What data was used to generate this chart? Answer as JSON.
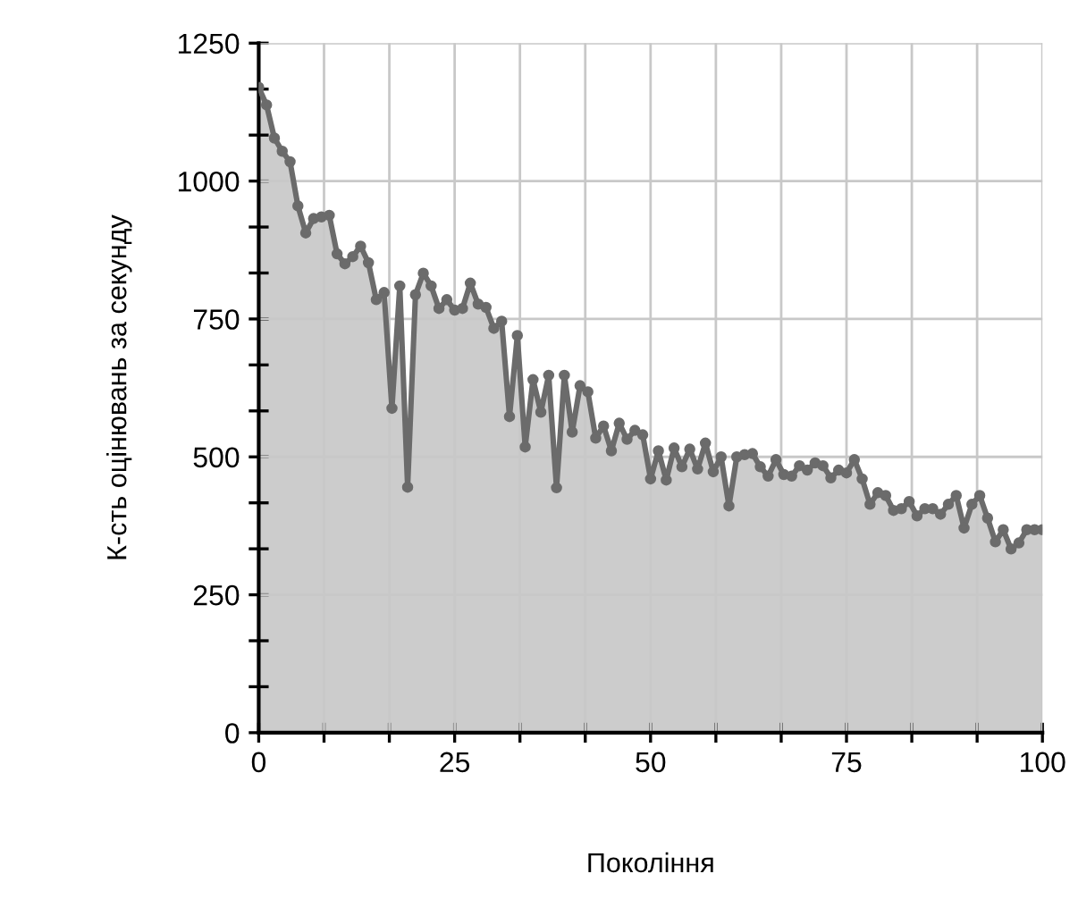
{
  "chart_data": {
    "type": "area",
    "xlabel": "Покоління",
    "ylabel": "К-сть оцінювань за секунду",
    "x": [
      0,
      1,
      2,
      3,
      4,
      5,
      6,
      7,
      8,
      9,
      10,
      11,
      12,
      13,
      14,
      15,
      16,
      17,
      18,
      19,
      20,
      21,
      22,
      23,
      24,
      25,
      26,
      27,
      28,
      29,
      30,
      31,
      32,
      33,
      34,
      35,
      36,
      37,
      38,
      39,
      40,
      41,
      42,
      43,
      44,
      45,
      46,
      47,
      48,
      49,
      50,
      51,
      52,
      53,
      54,
      55,
      56,
      57,
      58,
      59,
      60,
      61,
      62,
      63,
      64,
      65,
      66,
      67,
      68,
      69,
      70,
      71,
      72,
      73,
      74,
      75,
      76,
      77,
      78,
      79,
      80,
      81,
      82,
      83,
      84,
      85,
      86,
      87,
      88,
      89,
      90,
      91,
      92,
      93,
      94,
      95,
      96,
      97,
      98,
      99,
      100
    ],
    "series": [
      {
        "color": "#6b6b6b",
        "values": [
          1170,
          1138,
          1078,
          1054,
          1035,
          955,
          906,
          932,
          935,
          938,
          868,
          850,
          863,
          882,
          852,
          785,
          798,
          588,
          810,
          445,
          794,
          833,
          810,
          769,
          785,
          766,
          769,
          815,
          777,
          771,
          733,
          746,
          573,
          720,
          518,
          640,
          581,
          648,
          444,
          648,
          545,
          629,
          618,
          534,
          556,
          511,
          561,
          532,
          548,
          540,
          460,
          511,
          458,
          516,
          482,
          514,
          478,
          525,
          473,
          500,
          411,
          500,
          504,
          506,
          482,
          465,
          495,
          468,
          465,
          484,
          476,
          489,
          484,
          462,
          476,
          471,
          495,
          460,
          414,
          435,
          430,
          403,
          406,
          419,
          393,
          406,
          406,
          396,
          414,
          430,
          371,
          414,
          430,
          389,
          346,
          368,
          333,
          344,
          368,
          368,
          368
        ]
      }
    ],
    "xlim": [
      0,
      100
    ],
    "ylim": [
      0,
      1250
    ],
    "xticks": [
      0,
      {
        "value": 8.333,
        "label": null
      },
      {
        "value": 16.667,
        "label": null
      },
      25,
      {
        "value": 33.333,
        "label": null
      },
      {
        "value": 41.667,
        "label": null
      },
      50,
      {
        "value": 58.333,
        "label": null
      },
      {
        "value": 66.667,
        "label": null
      },
      75,
      {
        "value": 83.333,
        "label": null
      },
      {
        "value": 91.667,
        "label": null
      },
      100
    ],
    "yticks": [
      0,
      {
        "value": 83.33,
        "label": null
      },
      {
        "value": 166.67,
        "label": null
      },
      250,
      {
        "value": 333.33,
        "label": null
      },
      {
        "value": 416.67,
        "label": null
      },
      500,
      {
        "value": 583.33,
        "label": null
      },
      {
        "value": 666.67,
        "label": null
      },
      750,
      {
        "value": 833.33,
        "label": null
      },
      {
        "value": 916.67,
        "label": null
      },
      1000,
      {
        "value": 1083.33,
        "label": null
      },
      {
        "value": 1166.67,
        "label": null
      },
      1250
    ],
    "grid": true,
    "marker": "circle",
    "line_style": "solid"
  }
}
